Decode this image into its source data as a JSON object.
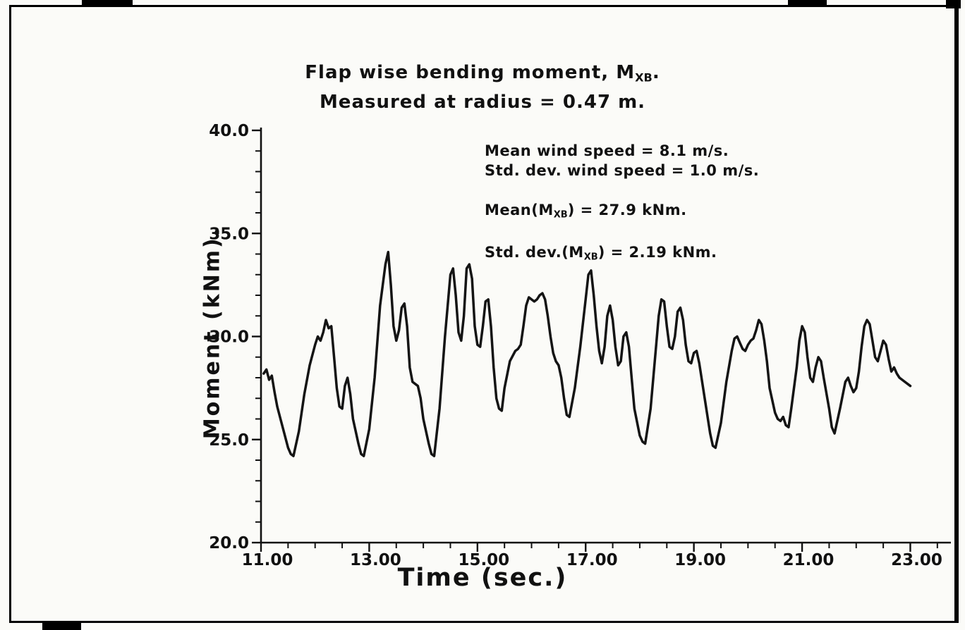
{
  "page": {
    "background": "#fbfbf8",
    "frame_color": "#000000"
  },
  "chart_data": {
    "type": "line",
    "title_lines": [
      [
        {
          "text": "Flap wise bending moment, M"
        },
        {
          "text": "XB",
          "sub": true
        },
        {
          "text": "."
        }
      ],
      [
        {
          "text": "Measured at radius = 0.47 m."
        }
      ]
    ],
    "xlabel": "Time (sec.)",
    "ylabel": "Moment (kNm).",
    "xlim": [
      11.0,
      23.75
    ],
    "ylim": [
      20.0,
      40.0
    ],
    "grid": false,
    "legend": "none",
    "x_ticks": [
      {
        "value": 11,
        "label": "11.00"
      },
      {
        "value": 13,
        "label": "13.00"
      },
      {
        "value": 15,
        "label": "15.00"
      },
      {
        "value": 17,
        "label": "17.00"
      },
      {
        "value": 19,
        "label": "19.00"
      },
      {
        "value": 21,
        "label": "21.00"
      },
      {
        "value": 23,
        "label": "23.00"
      }
    ],
    "x_minor_step": 0.5,
    "y_ticks": [
      {
        "value": 20,
        "label": "20.0"
      },
      {
        "value": 25,
        "label": "25.0"
      },
      {
        "value": 30,
        "label": "30.0"
      },
      {
        "value": 35,
        "label": "35.0"
      },
      {
        "value": 40,
        "label": "40.0"
      }
    ],
    "y_minor_step": 1.0,
    "annotations": [
      {
        "parts": [
          {
            "text": "Mean wind speed = 8.1 m/s."
          }
        ],
        "gap": 0
      },
      {
        "parts": [
          {
            "text": "Std. dev. wind speed = 1.0 m/s."
          }
        ],
        "gap": 0
      },
      {
        "parts": [
          {
            "text": "Mean(M"
          },
          {
            "text": "XB",
            "sub": true
          },
          {
            "text": ") = 27.9 kNm."
          }
        ],
        "gap": 1
      },
      {
        "parts": [
          {
            "text": "Std. dev.(M"
          },
          {
            "text": "XB",
            "sub": true
          },
          {
            "text": ") = 2.19 kNm."
          }
        ],
        "gap": 2
      }
    ],
    "stats": {
      "mean_wind_speed_ms": 8.1,
      "std_dev_wind_speed_ms": 1.0,
      "mean_mxb_knm": 27.9,
      "std_dev_mxb_knm": 2.19,
      "radius_m": 0.47
    },
    "line_color": "#141414",
    "line_width": 3.5,
    "series": [
      {
        "name": "flapwise_bending_moment",
        "points": [
          [
            11.05,
            28.2
          ],
          [
            11.1,
            28.4
          ],
          [
            11.15,
            27.9
          ],
          [
            11.2,
            28.1
          ],
          [
            11.25,
            27.3
          ],
          [
            11.3,
            26.6
          ],
          [
            11.4,
            25.6
          ],
          [
            11.5,
            24.6
          ],
          [
            11.55,
            24.3
          ],
          [
            11.6,
            24.2
          ],
          [
            11.7,
            25.4
          ],
          [
            11.8,
            27.2
          ],
          [
            11.9,
            28.6
          ],
          [
            12.0,
            29.6
          ],
          [
            12.05,
            30.0
          ],
          [
            12.1,
            29.8
          ],
          [
            12.15,
            30.2
          ],
          [
            12.2,
            30.8
          ],
          [
            12.25,
            30.4
          ],
          [
            12.3,
            30.5
          ],
          [
            12.35,
            29.0
          ],
          [
            12.4,
            27.5
          ],
          [
            12.45,
            26.6
          ],
          [
            12.5,
            26.5
          ],
          [
            12.55,
            27.6
          ],
          [
            12.6,
            28.0
          ],
          [
            12.65,
            27.2
          ],
          [
            12.7,
            26.0
          ],
          [
            12.8,
            24.8
          ],
          [
            12.85,
            24.3
          ],
          [
            12.9,
            24.2
          ],
          [
            13.0,
            25.5
          ],
          [
            13.1,
            28.0
          ],
          [
            13.2,
            31.5
          ],
          [
            13.3,
            33.5
          ],
          [
            13.35,
            34.1
          ],
          [
            13.4,
            32.5
          ],
          [
            13.45,
            30.5
          ],
          [
            13.5,
            29.8
          ],
          [
            13.55,
            30.3
          ],
          [
            13.6,
            31.4
          ],
          [
            13.65,
            31.6
          ],
          [
            13.7,
            30.5
          ],
          [
            13.75,
            28.5
          ],
          [
            13.8,
            27.8
          ],
          [
            13.9,
            27.6
          ],
          [
            13.95,
            27.0
          ],
          [
            14.0,
            26.0
          ],
          [
            14.1,
            24.8
          ],
          [
            14.15,
            24.3
          ],
          [
            14.2,
            24.2
          ],
          [
            14.3,
            26.5
          ],
          [
            14.4,
            30.0
          ],
          [
            14.5,
            33.0
          ],
          [
            14.55,
            33.3
          ],
          [
            14.6,
            32.0
          ],
          [
            14.65,
            30.2
          ],
          [
            14.7,
            29.8
          ],
          [
            14.75,
            31.0
          ],
          [
            14.8,
            33.3
          ],
          [
            14.85,
            33.5
          ],
          [
            14.9,
            32.8
          ],
          [
            14.95,
            30.5
          ],
          [
            15.0,
            29.6
          ],
          [
            15.05,
            29.5
          ],
          [
            15.1,
            30.5
          ],
          [
            15.15,
            31.7
          ],
          [
            15.2,
            31.8
          ],
          [
            15.25,
            30.5
          ],
          [
            15.3,
            28.5
          ],
          [
            15.35,
            27.0
          ],
          [
            15.4,
            26.5
          ],
          [
            15.45,
            26.4
          ],
          [
            15.5,
            27.5
          ],
          [
            15.6,
            28.8
          ],
          [
            15.7,
            29.3
          ],
          [
            15.75,
            29.4
          ],
          [
            15.8,
            29.6
          ],
          [
            15.85,
            30.5
          ],
          [
            15.9,
            31.5
          ],
          [
            15.95,
            31.9
          ],
          [
            16.0,
            31.8
          ],
          [
            16.05,
            31.7
          ],
          [
            16.1,
            31.8
          ],
          [
            16.15,
            32.0
          ],
          [
            16.2,
            32.1
          ],
          [
            16.25,
            31.8
          ],
          [
            16.3,
            31.0
          ],
          [
            16.35,
            30.0
          ],
          [
            16.4,
            29.2
          ],
          [
            16.45,
            28.8
          ],
          [
            16.5,
            28.6
          ],
          [
            16.55,
            28.0
          ],
          [
            16.6,
            27.0
          ],
          [
            16.65,
            26.2
          ],
          [
            16.7,
            26.1
          ],
          [
            16.8,
            27.5
          ],
          [
            16.9,
            29.5
          ],
          [
            17.0,
            31.8
          ],
          [
            17.05,
            33.0
          ],
          [
            17.1,
            33.2
          ],
          [
            17.15,
            32.0
          ],
          [
            17.2,
            30.5
          ],
          [
            17.25,
            29.3
          ],
          [
            17.3,
            28.7
          ],
          [
            17.35,
            29.5
          ],
          [
            17.4,
            31.0
          ],
          [
            17.45,
            31.5
          ],
          [
            17.5,
            30.8
          ],
          [
            17.55,
            29.5
          ],
          [
            17.6,
            28.6
          ],
          [
            17.65,
            28.8
          ],
          [
            17.7,
            30.0
          ],
          [
            17.75,
            30.2
          ],
          [
            17.8,
            29.5
          ],
          [
            17.85,
            28.0
          ],
          [
            17.9,
            26.5
          ],
          [
            18.0,
            25.2
          ],
          [
            18.05,
            24.9
          ],
          [
            18.1,
            24.8
          ],
          [
            18.2,
            26.5
          ],
          [
            18.3,
            29.5
          ],
          [
            18.35,
            31.0
          ],
          [
            18.4,
            31.8
          ],
          [
            18.45,
            31.7
          ],
          [
            18.5,
            30.5
          ],
          [
            18.55,
            29.5
          ],
          [
            18.6,
            29.4
          ],
          [
            18.65,
            30.0
          ],
          [
            18.7,
            31.2
          ],
          [
            18.75,
            31.4
          ],
          [
            18.8,
            30.8
          ],
          [
            18.85,
            29.6
          ],
          [
            18.9,
            28.8
          ],
          [
            18.95,
            28.7
          ],
          [
            19.0,
            29.2
          ],
          [
            19.05,
            29.3
          ],
          [
            19.1,
            28.7
          ],
          [
            19.2,
            27.0
          ],
          [
            19.3,
            25.3
          ],
          [
            19.35,
            24.7
          ],
          [
            19.4,
            24.6
          ],
          [
            19.5,
            25.8
          ],
          [
            19.6,
            27.8
          ],
          [
            19.7,
            29.3
          ],
          [
            19.75,
            29.9
          ],
          [
            19.8,
            30.0
          ],
          [
            19.85,
            29.7
          ],
          [
            19.9,
            29.4
          ],
          [
            19.95,
            29.3
          ],
          [
            20.0,
            29.6
          ],
          [
            20.05,
            29.8
          ],
          [
            20.1,
            29.9
          ],
          [
            20.15,
            30.3
          ],
          [
            20.2,
            30.8
          ],
          [
            20.25,
            30.6
          ],
          [
            20.3,
            29.8
          ],
          [
            20.35,
            28.8
          ],
          [
            20.4,
            27.5
          ],
          [
            20.5,
            26.3
          ],
          [
            20.55,
            26.0
          ],
          [
            20.6,
            25.9
          ],
          [
            20.65,
            26.1
          ],
          [
            20.7,
            25.7
          ],
          [
            20.75,
            25.6
          ],
          [
            20.8,
            26.5
          ],
          [
            20.9,
            28.5
          ],
          [
            20.95,
            29.8
          ],
          [
            21.0,
            30.5
          ],
          [
            21.05,
            30.2
          ],
          [
            21.1,
            29.0
          ],
          [
            21.15,
            28.0
          ],
          [
            21.2,
            27.8
          ],
          [
            21.25,
            28.5
          ],
          [
            21.3,
            29.0
          ],
          [
            21.35,
            28.8
          ],
          [
            21.4,
            28.0
          ],
          [
            21.5,
            26.5
          ],
          [
            21.55,
            25.6
          ],
          [
            21.6,
            25.3
          ],
          [
            21.7,
            26.5
          ],
          [
            21.8,
            27.8
          ],
          [
            21.85,
            28.0
          ],
          [
            21.9,
            27.6
          ],
          [
            21.95,
            27.3
          ],
          [
            22.0,
            27.5
          ],
          [
            22.05,
            28.3
          ],
          [
            22.1,
            29.5
          ],
          [
            22.15,
            30.5
          ],
          [
            22.2,
            30.8
          ],
          [
            22.25,
            30.6
          ],
          [
            22.3,
            29.8
          ],
          [
            22.35,
            29.0
          ],
          [
            22.4,
            28.8
          ],
          [
            22.45,
            29.3
          ],
          [
            22.5,
            29.8
          ],
          [
            22.55,
            29.6
          ],
          [
            22.6,
            28.9
          ],
          [
            22.65,
            28.3
          ],
          [
            22.7,
            28.5
          ],
          [
            22.75,
            28.2
          ],
          [
            22.8,
            28.0
          ],
          [
            22.9,
            27.8
          ],
          [
            23.0,
            27.6
          ]
        ]
      }
    ]
  }
}
